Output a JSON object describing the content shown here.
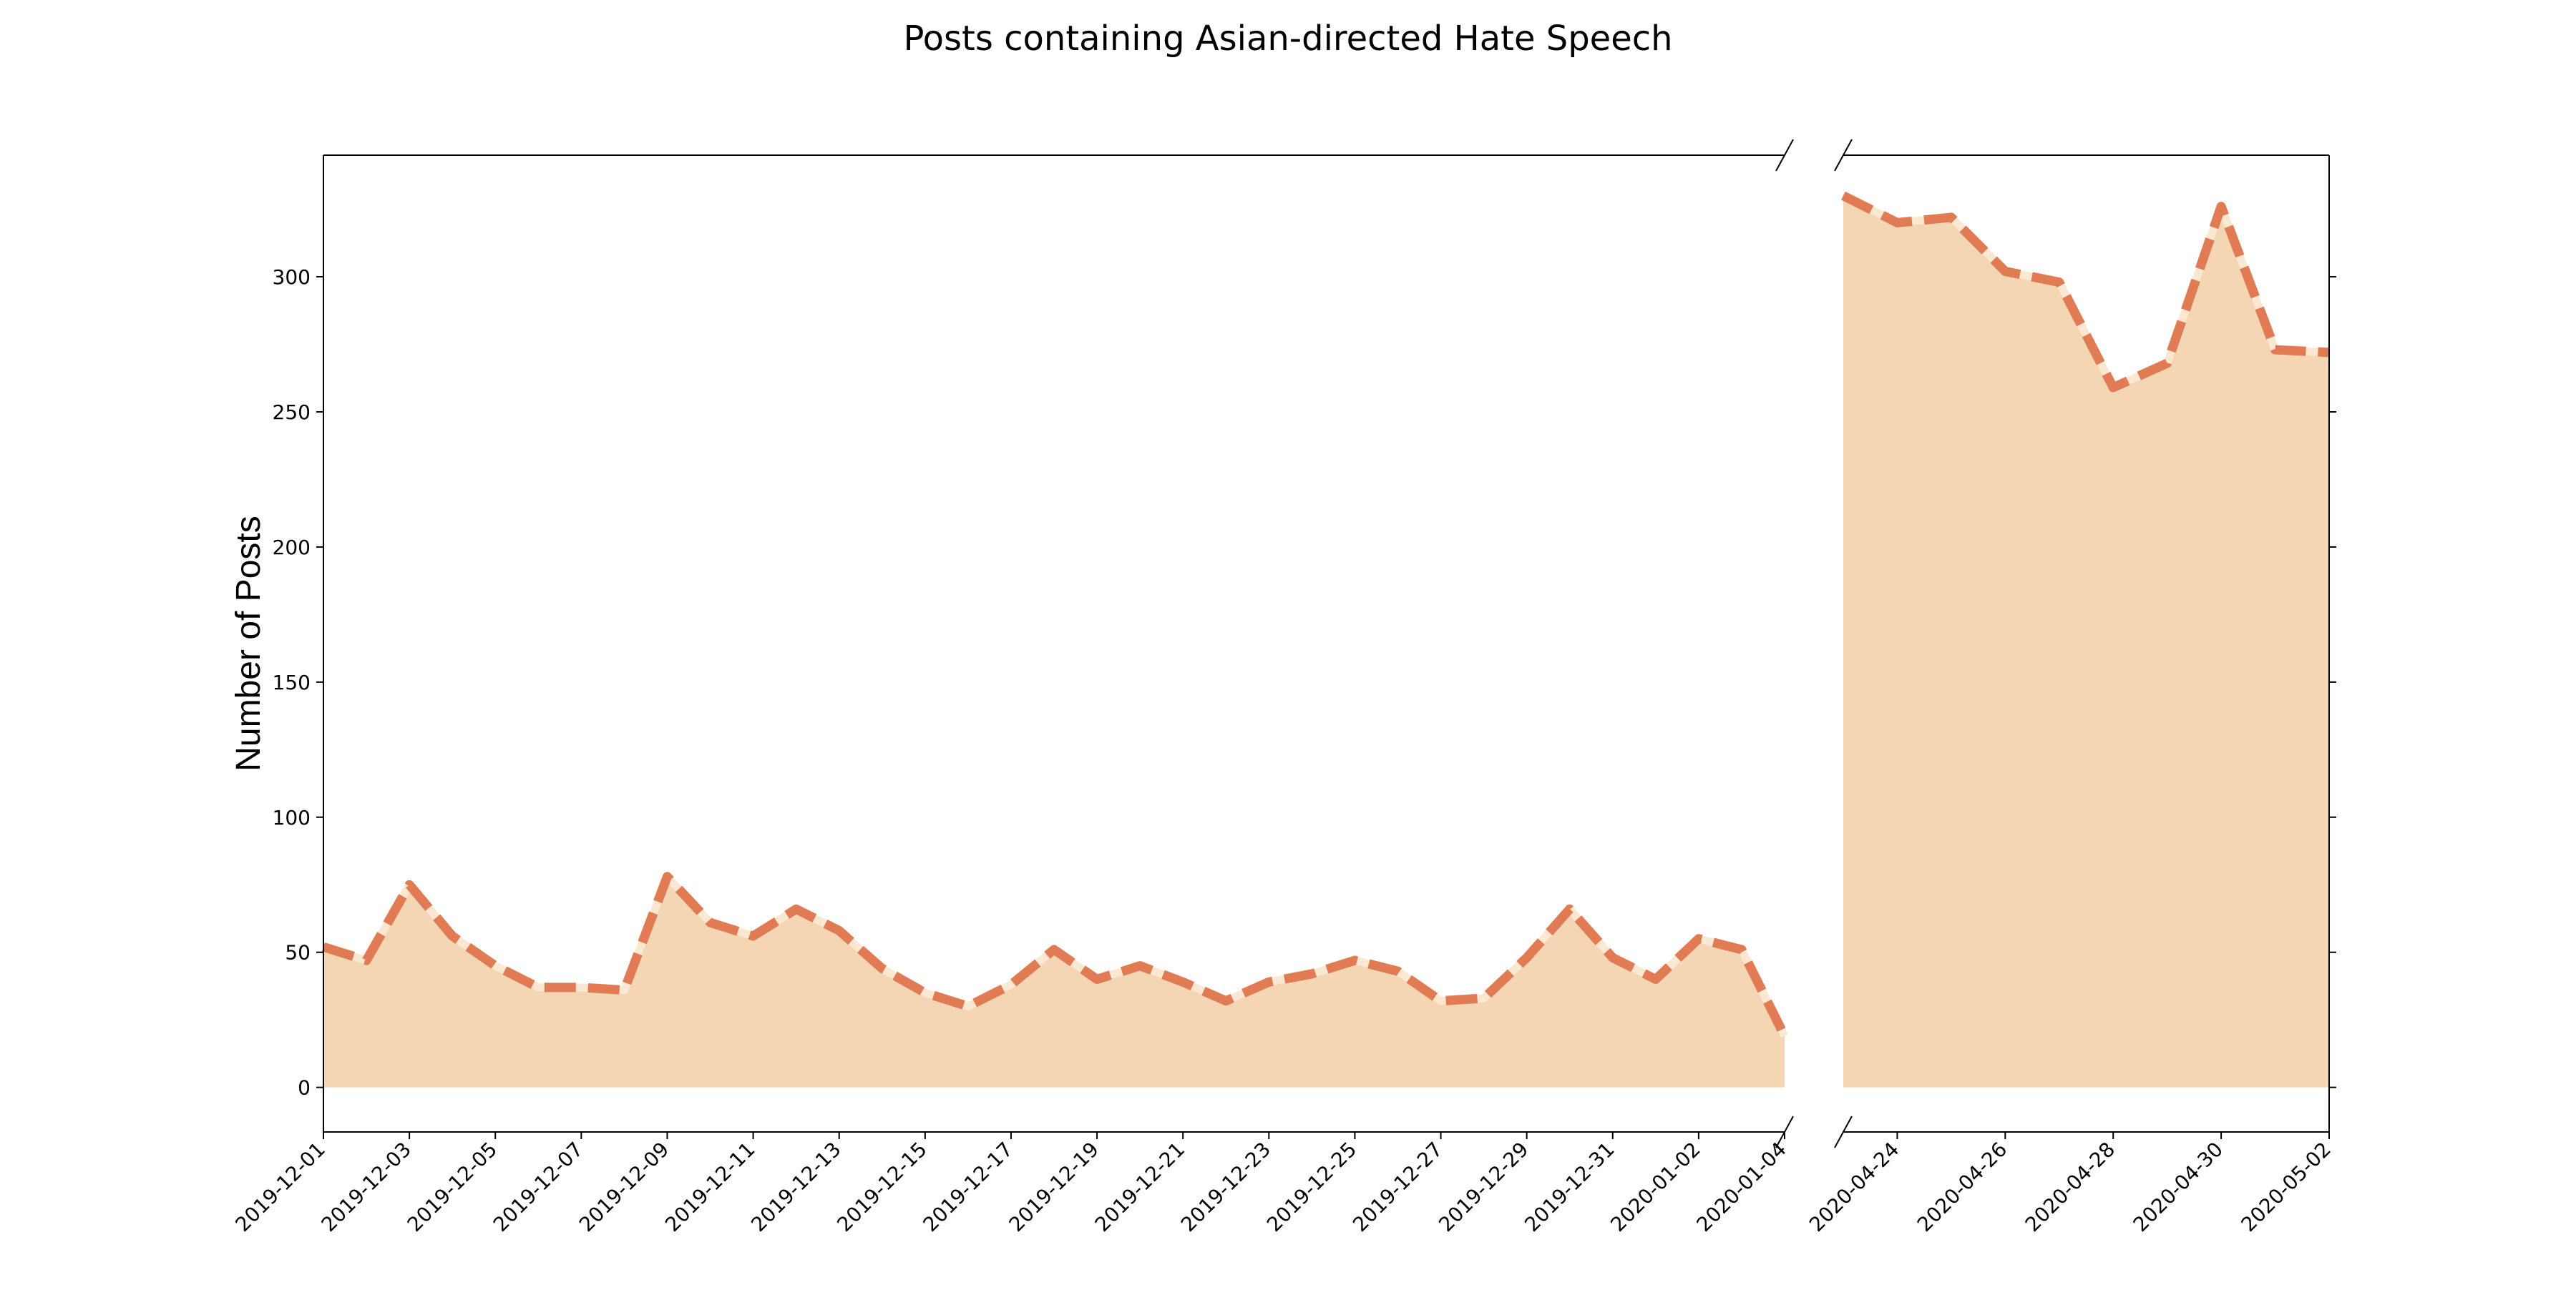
{
  "chart_data": {
    "type": "area",
    "title": "Posts containing Asian-directed Hate Speech",
    "xlabel": "",
    "ylabel": "Number of Posts",
    "ylim": [
      -16.5,
      345
    ],
    "yticks": [
      0,
      50,
      100,
      150,
      200,
      250,
      300
    ],
    "grid": false,
    "broken_x_axis": true,
    "colors": {
      "fill": "#f5d6b4",
      "line": "#e07b53",
      "line_gap": "#fbe8d3",
      "axis": "#000000"
    },
    "panels": [
      {
        "xlim": [
          "2019-12-01",
          "2020-01-04"
        ],
        "xticks": [
          "2019-12-01",
          "2019-12-03",
          "2019-12-05",
          "2019-12-07",
          "2019-12-09",
          "2019-12-11",
          "2019-12-13",
          "2019-12-15",
          "2019-12-17",
          "2019-12-19",
          "2019-12-21",
          "2019-12-23",
          "2019-12-25",
          "2019-12-27",
          "2019-12-29",
          "2019-12-31",
          "2020-01-02",
          "2020-01-04"
        ],
        "x": [
          "2019-12-01",
          "2019-12-02",
          "2019-12-03",
          "2019-12-04",
          "2019-12-05",
          "2019-12-06",
          "2019-12-07",
          "2019-12-08",
          "2019-12-09",
          "2019-12-10",
          "2019-12-11",
          "2019-12-12",
          "2019-12-13",
          "2019-12-14",
          "2019-12-15",
          "2019-12-16",
          "2019-12-17",
          "2019-12-18",
          "2019-12-19",
          "2019-12-20",
          "2019-12-21",
          "2019-12-22",
          "2019-12-23",
          "2019-12-24",
          "2019-12-25",
          "2019-12-26",
          "2019-12-27",
          "2019-12-28",
          "2019-12-29",
          "2019-12-30",
          "2019-12-31",
          "2020-01-01",
          "2020-01-02",
          "2020-01-03",
          "2020-01-04"
        ],
        "values": [
          52,
          47,
          75,
          56,
          45,
          37,
          37,
          36,
          78,
          61,
          56,
          66,
          58,
          44,
          35,
          30,
          38,
          51,
          40,
          45,
          39,
          32,
          39,
          42,
          47,
          43,
          32,
          33,
          48,
          66,
          48,
          40,
          55,
          51,
          19
        ]
      },
      {
        "xlim": [
          "2020-04-23",
          "2020-05-02"
        ],
        "xticks": [
          "2020-04-24",
          "2020-04-26",
          "2020-04-28",
          "2020-04-30",
          "2020-05-02"
        ],
        "x": [
          "2020-04-23",
          "2020-04-24",
          "2020-04-25",
          "2020-04-26",
          "2020-04-27",
          "2020-04-28",
          "2020-04-29",
          "2020-04-30",
          "2020-05-01",
          "2020-05-02"
        ],
        "values": [
          330,
          320,
          322,
          302,
          298,
          259,
          268,
          326,
          273,
          272
        ]
      }
    ]
  }
}
